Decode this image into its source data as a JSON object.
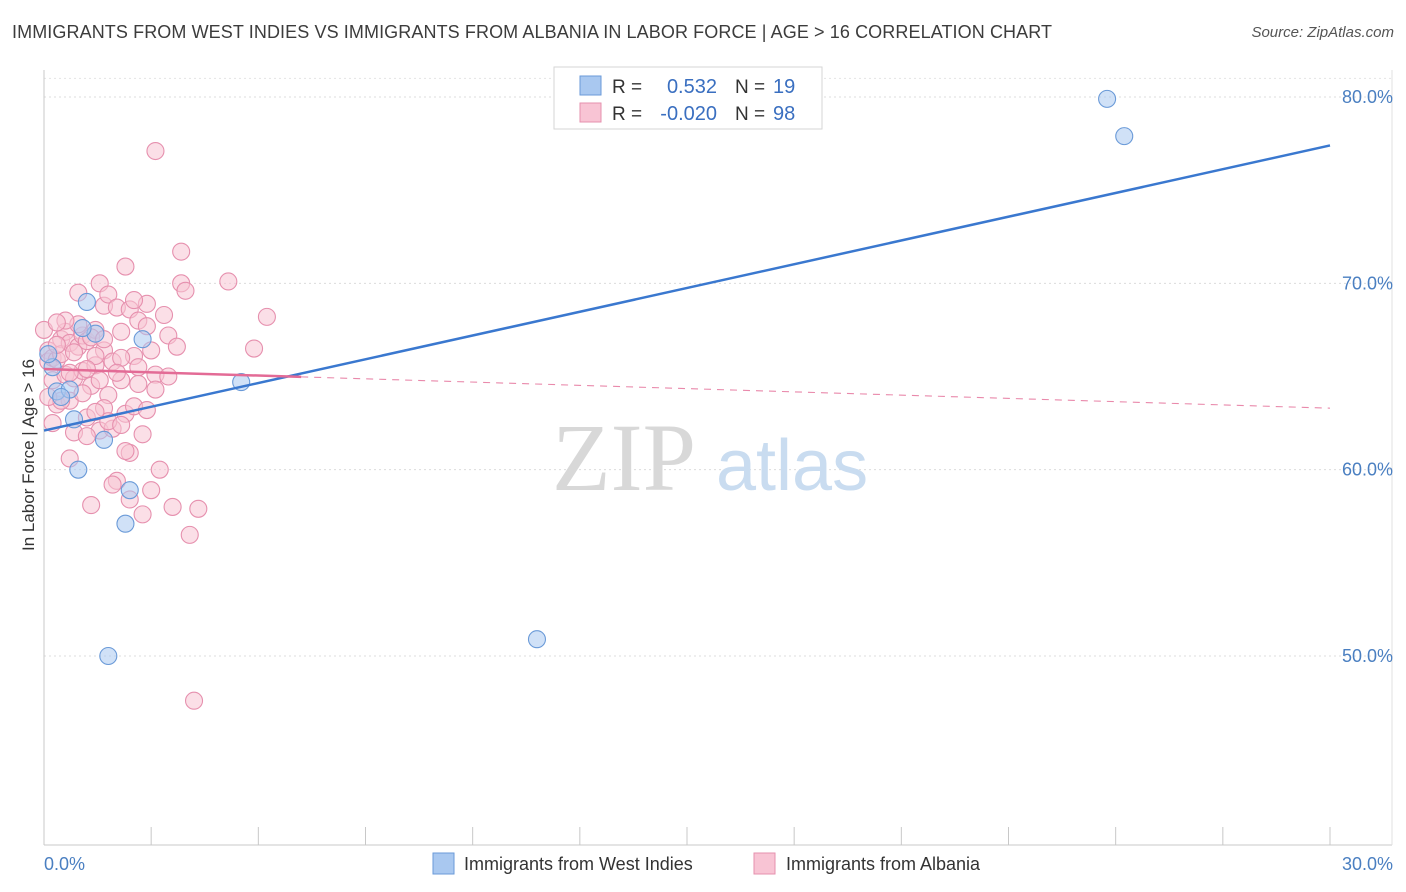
{
  "title": "IMMIGRANTS FROM WEST INDIES VS IMMIGRANTS FROM ALBANIA IN LABOR FORCE | AGE > 16 CORRELATION CHART",
  "source": "Source: ZipAtlas.com",
  "watermark": {
    "zip": "ZIP",
    "atlas": "atlas"
  },
  "legend": {
    "r_label": "R =",
    "n_label": "N =",
    "rows": [
      {
        "r": "0.532",
        "n": "19",
        "color": "#a9c8f0",
        "stroke": "#6a9ad8"
      },
      {
        "r": "-0.020",
        "n": "98",
        "color": "#f8c4d4",
        "stroke": "#e690ae"
      }
    ]
  },
  "chart_data": {
    "type": "scatter",
    "xlabel": "",
    "ylabel": "In Labor Force | Age > 16",
    "xlim": [
      0,
      30
    ],
    "ylim": [
      40,
      82
    ],
    "x_tick_labels": [
      {
        "value": 0,
        "label": "0.0%"
      },
      {
        "value": 30,
        "label": "30.0%"
      }
    ],
    "y_tick_labels": [
      {
        "value": 80,
        "label": "80.0%"
      },
      {
        "value": 70,
        "label": "70.0%"
      },
      {
        "value": 60,
        "label": "60.0%"
      },
      {
        "value": 50,
        "label": "50.0%"
      }
    ],
    "grid": true,
    "series": [
      {
        "name": "Immigrants from West Indies",
        "color": "#a9c8f0",
        "stroke": "#6a9ad8",
        "line_color": "#3a78cf",
        "trend": {
          "x0": 0,
          "y0": 62.1,
          "x1": 30,
          "y1": 77.4,
          "dashed_from": null
        },
        "points": [
          [
            0.2,
            65.5
          ],
          [
            0.3,
            64.2
          ],
          [
            0.6,
            64.3
          ],
          [
            0.7,
            62.7
          ],
          [
            0.8,
            60.0
          ],
          [
            1.0,
            69.0
          ],
          [
            1.2,
            67.3
          ],
          [
            1.4,
            61.6
          ],
          [
            1.5,
            50.0
          ],
          [
            1.9,
            57.1
          ],
          [
            2.0,
            58.9
          ],
          [
            2.3,
            67.0
          ],
          [
            4.6,
            64.7
          ],
          [
            11.5,
            50.9
          ],
          [
            24.8,
            79.9
          ],
          [
            25.2,
            77.9
          ],
          [
            0.1,
            66.2
          ],
          [
            0.4,
            63.9
          ],
          [
            0.9,
            67.6
          ]
        ]
      },
      {
        "name": "Immigrants from Albania",
        "color": "#f8c4d4",
        "stroke": "#e690ae",
        "line_color": "#e36b96",
        "trend": {
          "x0": 0,
          "y0": 65.4,
          "x1": 30,
          "y1": 63.3,
          "dashed_from": 6
        },
        "points": [
          [
            0.0,
            67.5
          ],
          [
            0.1,
            66.4
          ],
          [
            0.1,
            65.8
          ],
          [
            0.2,
            66.0
          ],
          [
            0.2,
            64.8
          ],
          [
            0.3,
            63.5
          ],
          [
            0.3,
            65.9
          ],
          [
            0.4,
            67.0
          ],
          [
            0.4,
            66.2
          ],
          [
            0.5,
            67.4
          ],
          [
            0.5,
            65.1
          ],
          [
            0.6,
            63.7
          ],
          [
            0.6,
            66.8
          ],
          [
            0.7,
            62.0
          ],
          [
            0.7,
            64.9
          ],
          [
            0.8,
            66.6
          ],
          [
            0.8,
            69.5
          ],
          [
            0.9,
            67.2
          ],
          [
            0.9,
            65.3
          ],
          [
            1.0,
            66.9
          ],
          [
            1.0,
            62.8
          ],
          [
            1.1,
            64.5
          ],
          [
            1.1,
            58.1
          ],
          [
            1.2,
            67.5
          ],
          [
            1.2,
            65.6
          ],
          [
            1.3,
            62.1
          ],
          [
            1.3,
            70.0
          ],
          [
            1.4,
            68.8
          ],
          [
            1.4,
            66.4
          ],
          [
            1.5,
            64.0
          ],
          [
            1.5,
            69.4
          ],
          [
            1.6,
            65.8
          ],
          [
            1.6,
            62.2
          ],
          [
            1.7,
            68.7
          ],
          [
            1.7,
            59.4
          ],
          [
            1.8,
            64.8
          ],
          [
            1.8,
            67.4
          ],
          [
            1.9,
            70.9
          ],
          [
            1.9,
            63.0
          ],
          [
            2.0,
            58.4
          ],
          [
            2.0,
            68.6
          ],
          [
            2.1,
            66.1
          ],
          [
            2.1,
            63.4
          ],
          [
            2.2,
            65.5
          ],
          [
            2.2,
            68.0
          ],
          [
            2.3,
            61.9
          ],
          [
            2.3,
            57.6
          ],
          [
            2.4,
            67.7
          ],
          [
            2.4,
            63.2
          ],
          [
            2.5,
            66.4
          ],
          [
            2.6,
            77.1
          ],
          [
            2.6,
            65.1
          ],
          [
            2.7,
            60.0
          ],
          [
            2.8,
            68.3
          ],
          [
            2.9,
            67.2
          ],
          [
            3.0,
            58.0
          ],
          [
            3.1,
            66.6
          ],
          [
            3.2,
            71.7
          ],
          [
            3.2,
            70.0
          ],
          [
            3.3,
            69.6
          ],
          [
            3.4,
            56.5
          ],
          [
            3.6,
            57.9
          ],
          [
            4.3,
            70.1
          ],
          [
            4.9,
            66.5
          ],
          [
            5.2,
            68.2
          ],
          [
            3.5,
            47.6
          ],
          [
            2.5,
            58.9
          ],
          [
            1.6,
            59.2
          ],
          [
            0.3,
            66.7
          ],
          [
            0.4,
            63.7
          ],
          [
            0.6,
            65.2
          ],
          [
            0.8,
            67.8
          ],
          [
            1.0,
            61.8
          ],
          [
            1.2,
            66.1
          ],
          [
            1.4,
            63.3
          ],
          [
            1.8,
            66.0
          ],
          [
            2.0,
            60.9
          ],
          [
            2.2,
            64.6
          ],
          [
            0.5,
            68.0
          ],
          [
            0.9,
            64.1
          ],
          [
            1.1,
            67.1
          ],
          [
            1.5,
            62.6
          ],
          [
            1.7,
            65.2
          ],
          [
            2.4,
            68.9
          ],
          [
            0.2,
            62.5
          ],
          [
            0.7,
            66.3
          ],
          [
            1.3,
            64.8
          ],
          [
            1.9,
            61.0
          ],
          [
            2.1,
            69.1
          ],
          [
            0.1,
            63.9
          ],
          [
            0.6,
            60.6
          ],
          [
            1.0,
            65.4
          ],
          [
            1.4,
            67.0
          ],
          [
            1.8,
            62.4
          ],
          [
            2.6,
            64.3
          ],
          [
            0.3,
            67.9
          ],
          [
            1.2,
            63.1
          ],
          [
            2.9,
            65.0
          ]
        ]
      }
    ]
  },
  "bottom_legend": [
    {
      "label": "Immigrants from West Indies",
      "color": "#a9c8f0",
      "stroke": "#6a9ad8"
    },
    {
      "label": "Immigrants from Albania",
      "color": "#f8c4d4",
      "stroke": "#e690ae"
    }
  ]
}
